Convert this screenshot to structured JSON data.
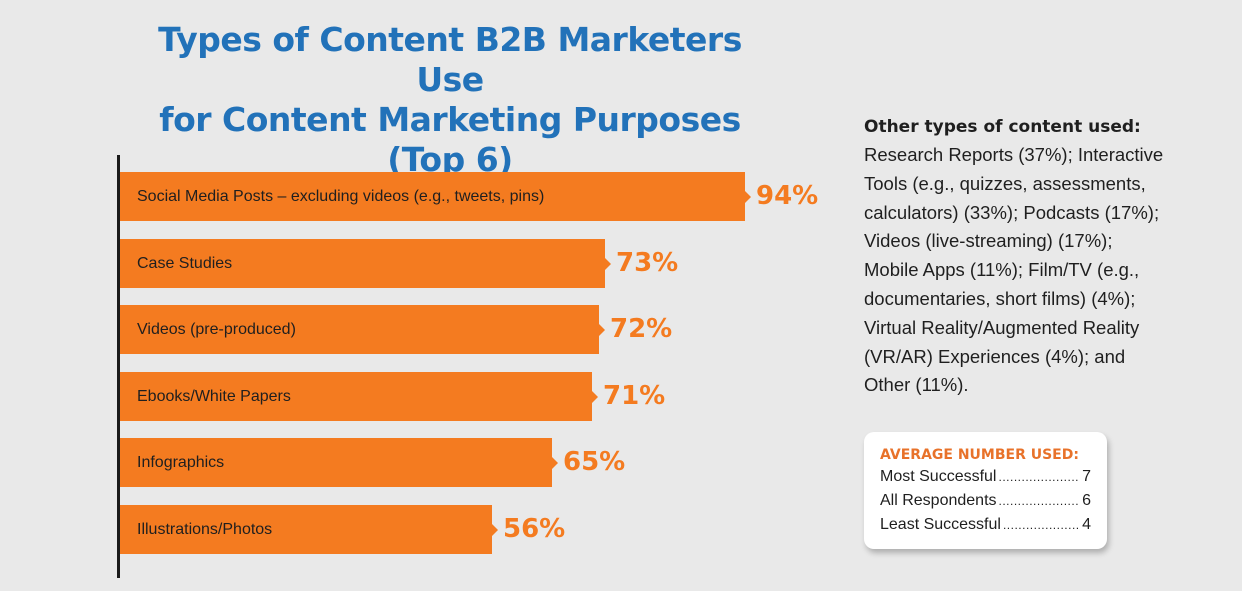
{
  "title_line1": "Types of Content B2B Marketers Use",
  "title_line2": "for Content Marketing Purposes",
  "title_line3": "(Top 6)",
  "colors": {
    "bar": "#f47b20",
    "title": "#2272b9",
    "value": "#f47b20"
  },
  "chart_data": {
    "type": "bar",
    "orientation": "horizontal",
    "categories": [
      "Social Media Posts – excluding videos (e.g., tweets, pins)",
      "Case Studies",
      "Videos (pre-produced)",
      "Ebooks/White Papers",
      "Infographics",
      "Illustrations/Photos"
    ],
    "values": [
      94,
      73,
      72,
      71,
      65,
      56
    ],
    "value_labels": [
      "94%",
      "73%",
      "72%",
      "71%",
      "65%",
      "56%"
    ],
    "xlim": [
      0,
      100
    ],
    "grid": false,
    "legend": "none"
  },
  "other": {
    "heading": "Other types of content used:",
    "body": "Research Reports (37%); Interactive Tools (e.g., quizzes, assessments, calculators) (33%); Podcasts (17%); Videos (live-streaming) (17%); Mobile Apps (11%); Film/TV (e.g., documentaries, short films) (4%); Virtual Reality/Augmented Reality (VR/AR) Experiences (4%); and Other (11%)."
  },
  "average": {
    "heading": "AVERAGE NUMBER USED:",
    "rows": [
      {
        "label": "Most Successful",
        "value": "7"
      },
      {
        "label": "All Respondents",
        "value": "6"
      },
      {
        "label": "Least Successful",
        "value": "4"
      }
    ]
  }
}
